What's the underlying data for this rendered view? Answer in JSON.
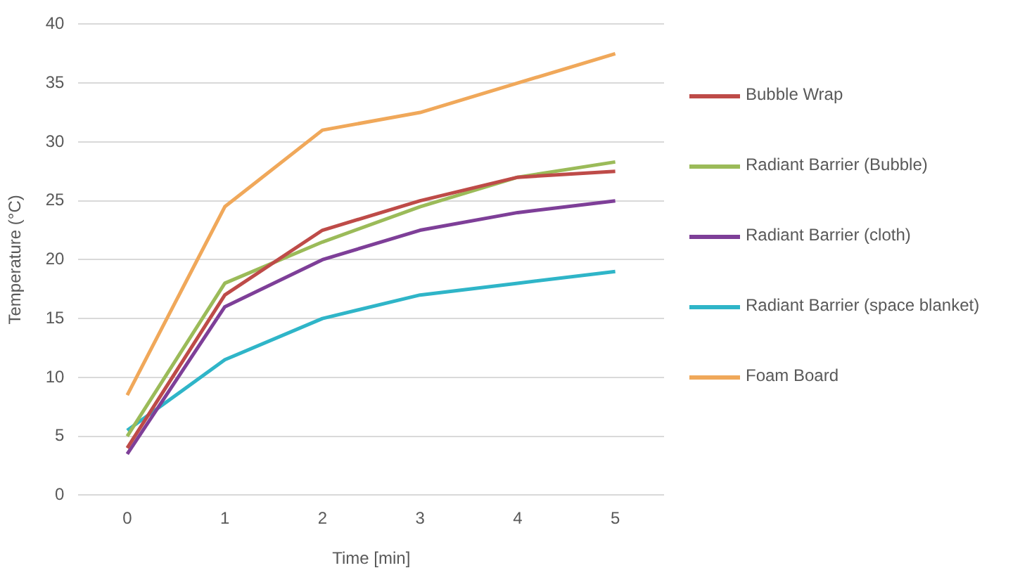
{
  "chart_data": {
    "type": "line",
    "xlabel": "Time [min]",
    "ylabel": "Temperature (°C)",
    "categories": [
      "0",
      "1",
      "2",
      "3",
      "4",
      "5"
    ],
    "ylim": [
      0,
      40
    ],
    "yticks": [
      0,
      5,
      10,
      15,
      20,
      25,
      30,
      35,
      40
    ],
    "grid": "y",
    "legend": "right",
    "marker": "none",
    "line_style": "solid",
    "series": [
      {
        "name": "Bubble Wrap",
        "color": "#be4b48",
        "values": [
          4,
          17,
          22.5,
          25,
          27,
          27.5
        ]
      },
      {
        "name": "Radiant Barrier (Bubble)",
        "color": "#9bbb59",
        "values": [
          5,
          18,
          21.5,
          24.5,
          27,
          28.3
        ]
      },
      {
        "name": "Radiant Barrier (cloth)",
        "color": "#7e3f98",
        "values": [
          3.5,
          16,
          20,
          22.5,
          24,
          25
        ]
      },
      {
        "name": "Radiant Barrier (space blanket)",
        "color": "#2fb5c8",
        "values": [
          5.5,
          11.5,
          15,
          17,
          18,
          19
        ]
      },
      {
        "name": "Foam Board",
        "color": "#f0a85a",
        "values": [
          8.5,
          24.5,
          31,
          32.5,
          35,
          37.5
        ]
      }
    ]
  }
}
